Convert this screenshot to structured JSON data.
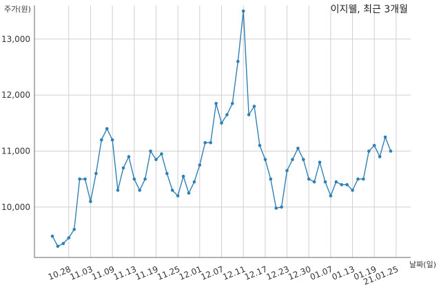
{
  "chart_data": {
    "type": "line",
    "title": "이지웰, 최근 3개월",
    "ylabel": "주가(원)",
    "xlabel": "날짜(일)",
    "ylim": [
      9100,
      13600
    ],
    "y_ticks": [
      10000,
      11000,
      12000,
      13000
    ],
    "y_tick_labels": [
      "10,000",
      "11,000",
      "12,000",
      "13,000"
    ],
    "grid": true,
    "legend": "none",
    "line_color": "#2e7fb5",
    "x_tick_labels": [
      "10.28",
      "11.03",
      "11.09",
      "11.13",
      "11.19",
      "11.25",
      "12.01",
      "12.07",
      "12.11",
      "12.17",
      "12.23",
      "12.30",
      "01.07",
      "01.13",
      "01.19",
      "21.01.25"
    ],
    "x_tick_index": [
      3,
      7,
      11,
      15,
      19,
      23,
      27,
      31,
      35,
      39,
      43,
      47,
      51,
      55,
      59,
      63
    ],
    "series": [
      {
        "values": [
          9480,
          9300,
          9350,
          9450,
          9600,
          10500,
          10500,
          10100,
          10600,
          11200,
          11400,
          11200,
          10300,
          10700,
          10900,
          10500,
          10300,
          10500,
          11000,
          10850,
          10950,
          10600,
          10300,
          10200,
          10550,
          10250,
          10450,
          10750,
          11150,
          11150,
          11850,
          11500,
          11650,
          11850,
          12600,
          13500,
          11650,
          11800,
          11100,
          10850,
          10500,
          9980,
          10000,
          10650,
          10850,
          11050,
          10850,
          10500,
          10450,
          10800,
          10450,
          10200,
          10450,
          10400,
          10400,
          10300,
          10500,
          10500,
          11000,
          11100,
          10900,
          11250,
          11000
        ]
      }
    ]
  }
}
